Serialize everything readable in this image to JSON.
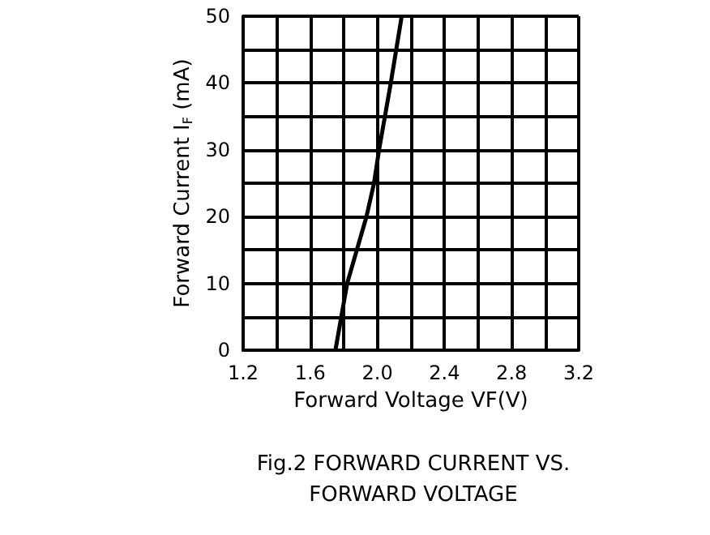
{
  "chart_data": {
    "type": "line",
    "title": "Fig.2 FORWARD CURRENT VS.\nFORWARD VOLTAGE",
    "xlabel": "Forward Voltage VF(V)",
    "ylabel": "Forward Current I$_{F}$ (mA)",
    "x": [
      1.75,
      1.82,
      1.935,
      1.98,
      2.01,
      2.08,
      2.145
    ],
    "series": [
      {
        "color": "#000000",
        "values": [
          0,
          10,
          20,
          25,
          30,
          40,
          50
        ]
      }
    ],
    "xlim": [
      1.2,
      3.2
    ],
    "xticks": [
      1.2,
      {
        "value": 1.4,
        "label": null
      },
      1.6,
      {
        "value": 1.8,
        "label": null
      },
      {
        "value": 2,
        "label": "2.0"
      },
      {
        "value": 2.2,
        "label": null
      },
      2.4,
      {
        "value": 2.6,
        "label": null
      },
      2.8,
      {
        "value": 3.0,
        "label": null
      },
      3.2
    ],
    "ylim": [
      0,
      50
    ],
    "yticks": [
      0,
      {
        "value": 5,
        "label": null
      },
      10,
      {
        "value": 15,
        "label": null
      },
      20,
      {
        "value": 25,
        "label": null
      },
      30,
      {
        "value": 35,
        "label": null
      },
      40,
      {
        "value": 45,
        "label": null
      },
      50
    ],
    "grid": true,
    "marker": "none",
    "line_style": "solid"
  }
}
